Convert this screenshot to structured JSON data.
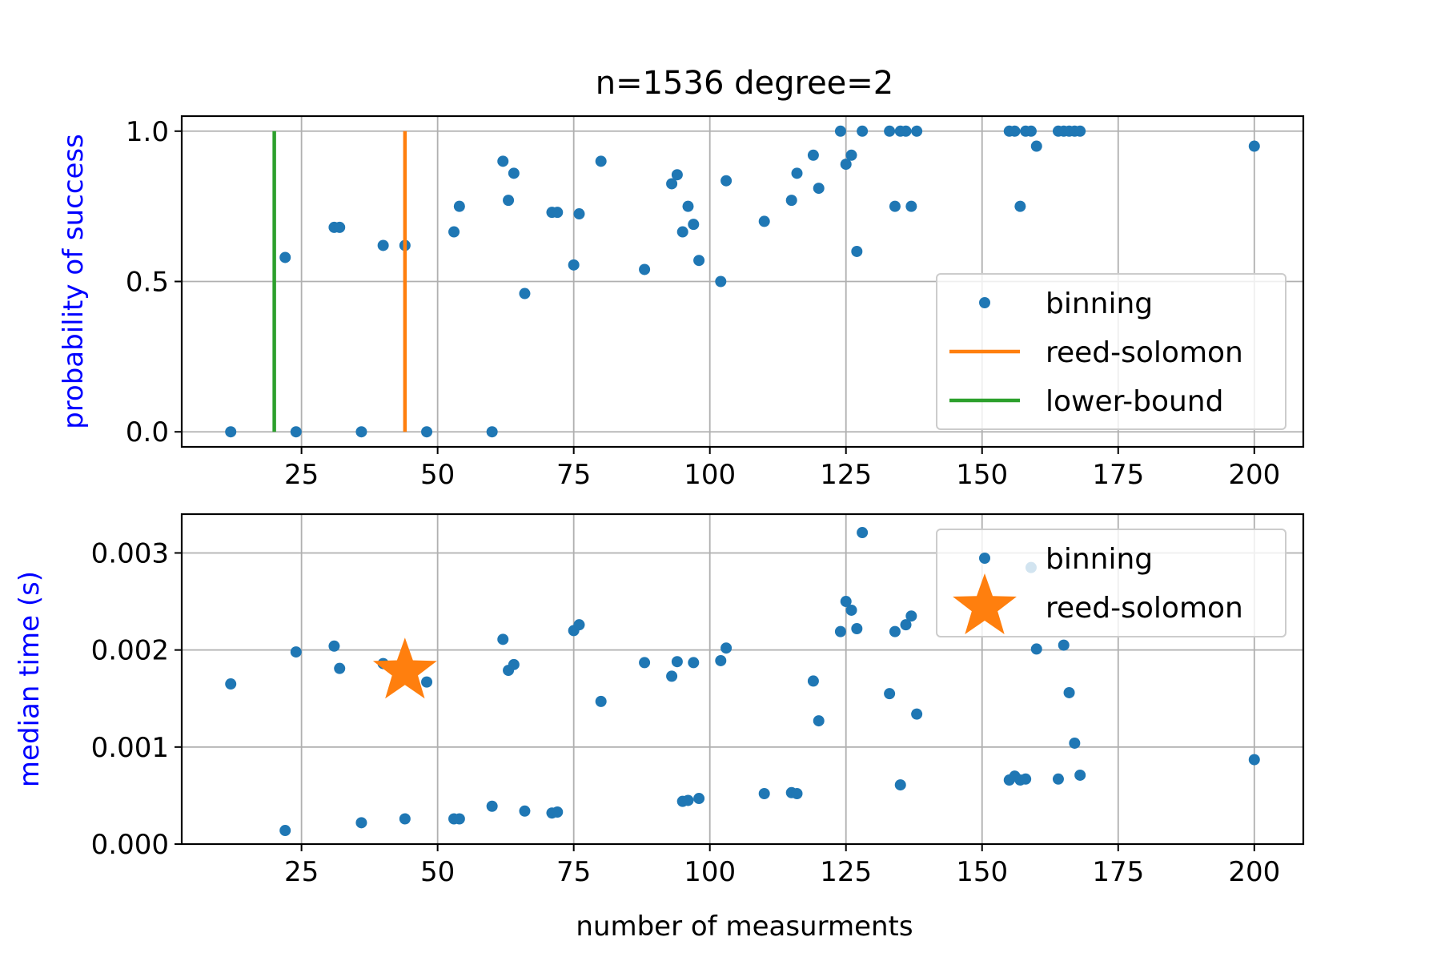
{
  "title": "n=1536 degree=2",
  "xlabel": "number of measurments",
  "colors": {
    "binning": "#1f77b4",
    "reed_solomon": "#ff7f0e",
    "lower_bound": "#2ca02c",
    "ylabel": "#0000ff"
  },
  "chart_data": [
    {
      "type": "scatter",
      "ylabel": "probability of success",
      "xlim": [
        3,
        209
      ],
      "ylim": [
        -0.05,
        1.05
      ],
      "xticks": [
        25,
        50,
        75,
        100,
        125,
        150,
        175,
        200
      ],
      "xtick_labels": [
        "25",
        "50",
        "75",
        "100",
        "125",
        "150",
        "175",
        "200"
      ],
      "yticks": [
        0.0,
        0.5,
        1.0
      ],
      "ytick_labels": [
        "0.0",
        "0.5",
        "1.0"
      ],
      "grid": true,
      "legend_position": "lower-right",
      "legend": [
        "binning",
        "reed-solomon",
        "lower-bound"
      ],
      "series": [
        {
          "name": "binning",
          "marker": "dot",
          "points": [
            [
              12,
              0
            ],
            [
              22,
              0.58
            ],
            [
              24,
              0
            ],
            [
              31,
              0.68
            ],
            [
              32,
              0.68
            ],
            [
              36,
              0
            ],
            [
              40,
              0.62
            ],
            [
              44,
              0.62
            ],
            [
              48,
              0
            ],
            [
              53,
              0.665
            ],
            [
              54,
              0.75
            ],
            [
              60,
              0
            ],
            [
              62,
              0.9
            ],
            [
              63,
              0.77
            ],
            [
              64,
              0.86
            ],
            [
              66,
              0.46
            ],
            [
              71,
              0.73
            ],
            [
              72,
              0.73
            ],
            [
              75,
              0.555
            ],
            [
              76,
              0.725
            ],
            [
              80,
              0.9
            ],
            [
              88,
              0.54
            ],
            [
              93,
              0.825
            ],
            [
              94,
              0.855
            ],
            [
              95,
              0.665
            ],
            [
              96,
              0.75
            ],
            [
              97,
              0.69
            ],
            [
              98,
              0.57
            ],
            [
              102,
              0.5
            ],
            [
              103,
              0.835
            ],
            [
              110,
              0.7
            ],
            [
              115,
              0.77
            ],
            [
              116,
              0.86
            ],
            [
              119,
              0.92
            ],
            [
              120,
              0.81
            ],
            [
              124,
              1.0
            ],
            [
              125,
              0.89
            ],
            [
              126,
              0.92
            ],
            [
              127,
              0.6
            ],
            [
              128,
              1.0
            ],
            [
              133,
              1.0
            ],
            [
              134,
              0.75
            ],
            [
              135,
              1.0
            ],
            [
              136,
              1.0
            ],
            [
              137,
              0.75
            ],
            [
              138,
              1.0
            ],
            [
              155,
              1.0
            ],
            [
              156,
              1.0
            ],
            [
              157,
              0.75
            ],
            [
              158,
              1.0
            ],
            [
              159,
              1.0
            ],
            [
              160,
              0.95
            ],
            [
              164,
              1.0
            ],
            [
              165,
              1.0
            ],
            [
              166,
              1.0
            ],
            [
              167,
              1.0
            ],
            [
              168,
              1.0
            ],
            [
              200,
              0.95
            ]
          ]
        },
        {
          "name": "reed-solomon",
          "marker": "vertical-line",
          "x": 44,
          "y_range": [
            0,
            1
          ]
        },
        {
          "name": "lower-bound",
          "marker": "vertical-line",
          "x": 20,
          "y_range": [
            0,
            1
          ]
        }
      ]
    },
    {
      "type": "scatter",
      "ylabel": "median time (s)",
      "xlim": [
        3,
        209
      ],
      "ylim": [
        0,
        0.0034
      ],
      "xticks": [
        25,
        50,
        75,
        100,
        125,
        150,
        175,
        200
      ],
      "xtick_labels": [
        "25",
        "50",
        "75",
        "100",
        "125",
        "150",
        "175",
        "200"
      ],
      "yticks": [
        0,
        0.001,
        0.002,
        0.003
      ],
      "ytick_labels": [
        "0.000",
        "0.001",
        "0.002",
        "0.003"
      ],
      "grid": true,
      "legend_position": "upper-right",
      "legend": [
        "binning",
        "reed-solomon"
      ],
      "series": [
        {
          "name": "binning",
          "marker": "dot",
          "points": [
            [
              12,
              0.00165
            ],
            [
              22,
              0.00014
            ],
            [
              24,
              0.00198
            ],
            [
              31,
              0.00204
            ],
            [
              32,
              0.00181
            ],
            [
              36,
              0.00022
            ],
            [
              40,
              0.00186
            ],
            [
              44,
              0.00026
            ],
            [
              48,
              0.00167
            ],
            [
              53,
              0.00026
            ],
            [
              54,
              0.00026
            ],
            [
              60,
              0.00039
            ],
            [
              62,
              0.00211
            ],
            [
              63,
              0.00179
            ],
            [
              64,
              0.00185
            ],
            [
              66,
              0.00034
            ],
            [
              71,
              0.00032
            ],
            [
              72,
              0.00033
            ],
            [
              75,
              0.0022
            ],
            [
              76,
              0.00226
            ],
            [
              80,
              0.00147
            ],
            [
              88,
              0.00187
            ],
            [
              93,
              0.00173
            ],
            [
              94,
              0.00188
            ],
            [
              95,
              0.00044
            ],
            [
              96,
              0.00045
            ],
            [
              97,
              0.00187
            ],
            [
              98,
              0.00047
            ],
            [
              102,
              0.00189
            ],
            [
              103,
              0.00202
            ],
            [
              110,
              0.00052
            ],
            [
              115,
              0.00053
            ],
            [
              116,
              0.00052
            ],
            [
              119,
              0.00168
            ],
            [
              120,
              0.00127
            ],
            [
              124,
              0.00219
            ],
            [
              125,
              0.0025
            ],
            [
              126,
              0.00241
            ],
            [
              127,
              0.00222
            ],
            [
              128,
              0.00321
            ],
            [
              133,
              0.00155
            ],
            [
              134,
              0.00219
            ],
            [
              135,
              0.00061
            ],
            [
              136,
              0.00226
            ],
            [
              137,
              0.00235
            ],
            [
              138,
              0.00134
            ],
            [
              155,
              0.00066
            ],
            [
              156,
              0.0007
            ],
            [
              157,
              0.00066
            ],
            [
              158,
              0.00067
            ],
            [
              159,
              0.00285
            ],
            [
              160,
              0.00201
            ],
            [
              164,
              0.00067
            ],
            [
              165,
              0.00205
            ],
            [
              166,
              0.00156
            ],
            [
              167,
              0.00104
            ],
            [
              168,
              0.00071
            ],
            [
              200,
              0.00087
            ]
          ]
        },
        {
          "name": "reed-solomon",
          "marker": "star",
          "points": [
            [
              44,
              0.00178
            ]
          ]
        }
      ]
    }
  ]
}
